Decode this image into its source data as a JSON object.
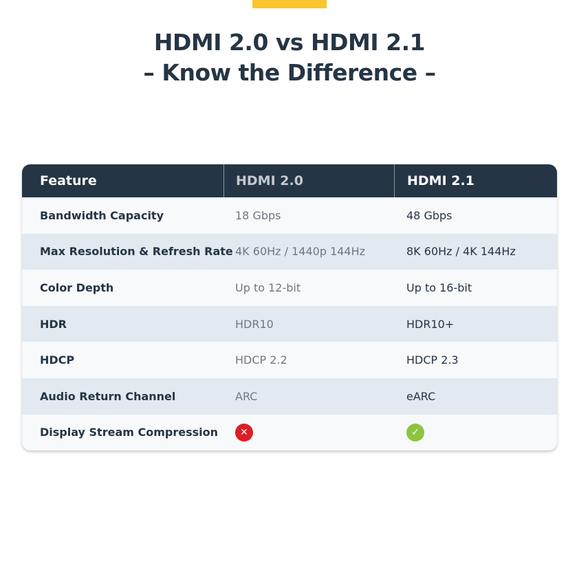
{
  "title": {
    "line1": "HDMI 2.0 vs HDMI 2.1",
    "line2": "– Know the Difference –"
  },
  "colors": {
    "accent": "#fbc52d",
    "header_bg": "#253545",
    "alt_row": "#e3e9f0",
    "no": "#dc1e26",
    "yes": "#8cc540"
  },
  "table": {
    "headers": [
      "Feature",
      "HDMI 2.0",
      "HDMI 2.1"
    ],
    "rows": [
      [
        "Bandwidth Capacity",
        "18 Gbps",
        "48 Gbps"
      ],
      [
        "Max Resolution & Refresh Rate",
        "4K 60Hz / 1440p 144Hz",
        "8K 60Hz / 4K 144Hz"
      ],
      [
        "Color Depth",
        "Up to 12-bit",
        "Up to 16-bit"
      ],
      [
        "HDR",
        "HDR10",
        "HDR10+"
      ],
      [
        "HDCP",
        "HDCP 2.2",
        "HDCP 2.3"
      ],
      [
        "Audio Return Channel",
        "ARC",
        "eARC"
      ],
      [
        "Display Stream Compression",
        {
          "icon": "x-circle-icon"
        },
        {
          "icon": "check-circle-icon"
        }
      ]
    ]
  }
}
